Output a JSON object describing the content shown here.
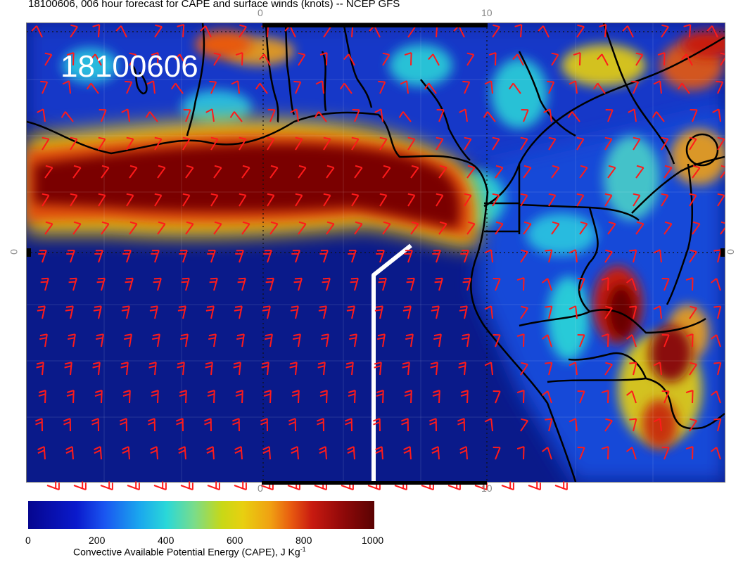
{
  "title": "18100606, 006 hour forecast for CAPE and surface winds (knots) -- NCEP GFS",
  "stamp": "18100606",
  "axis": {
    "top_ticks": [
      "0",
      "10"
    ],
    "bottom_ticks": [
      "0",
      "10"
    ],
    "left_ticks": [
      "0"
    ],
    "right_ticks": [
      "0"
    ]
  },
  "colorbar": {
    "ticks": [
      "0",
      "200",
      "400",
      "600",
      "800",
      "1000"
    ],
    "label_main": "Convective Available Potential Energy (CAPE), J Kg",
    "label_sup": "-1",
    "colors": {
      "low": "#06068f",
      "mid_low": "#1aa6ee",
      "mid": "#c8d816",
      "mid_high": "#f0a012",
      "high": "#5a0202"
    }
  },
  "legend_colors": {
    "wind_barbs": "#ff1a1a",
    "coastline": "#000000",
    "route_line": "#ffffff"
  }
}
